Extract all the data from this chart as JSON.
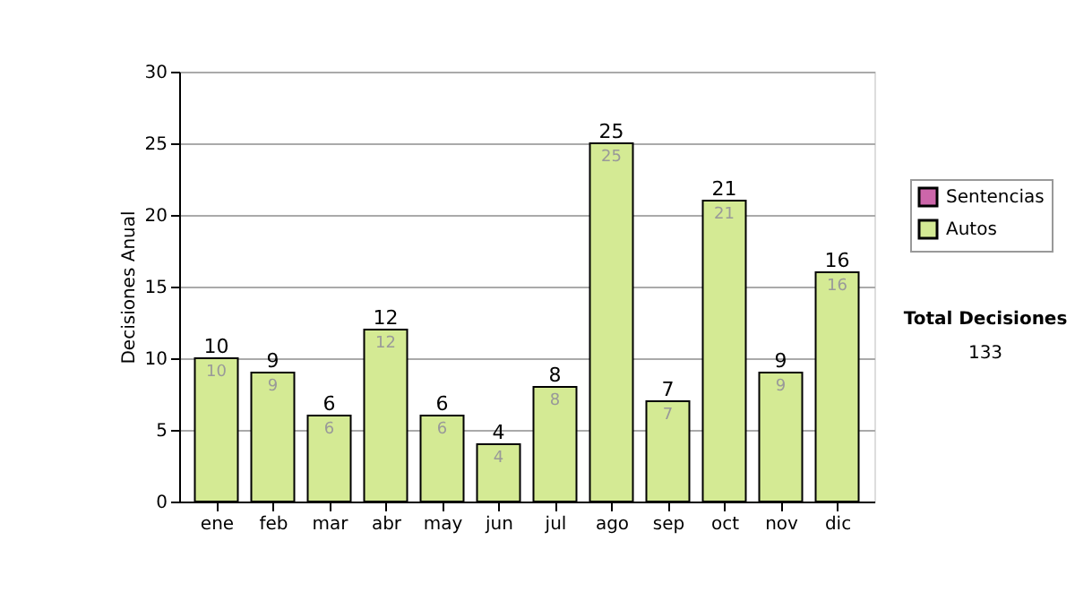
{
  "chart_data": {
    "type": "bar",
    "stacked": true,
    "ylabel": "Decisiones Anual",
    "categories": [
      "ene",
      "feb",
      "mar",
      "abr",
      "may",
      "jun",
      "jul",
      "ago",
      "sep",
      "oct",
      "nov",
      "dic"
    ],
    "series": [
      {
        "name": "Sentencias",
        "color": "#cc66aa",
        "values": [
          0,
          0,
          0,
          0,
          0,
          0,
          0,
          0,
          0,
          0,
          0,
          0
        ]
      },
      {
        "name": "Autos",
        "color": "#d4ea94",
        "values": [
          10,
          9,
          6,
          12,
          6,
          4,
          8,
          25,
          7,
          21,
          9,
          16
        ],
        "value_labels": [
          "10",
          "9",
          "6",
          "12",
          "6",
          "4",
          "8",
          "25",
          "7",
          "21",
          "9",
          "16"
        ]
      }
    ],
    "totals": [
      "10",
      "9",
      "6",
      "12",
      "6",
      "4",
      "8",
      "25",
      "7",
      "21",
      "9",
      "16"
    ],
    "ylim": [
      0,
      30
    ],
    "yticks": [
      0,
      5,
      10,
      15,
      20,
      25,
      30
    ],
    "grid": "y",
    "legend": "right",
    "annotations": [
      "Total Decisiones",
      "133"
    ]
  }
}
